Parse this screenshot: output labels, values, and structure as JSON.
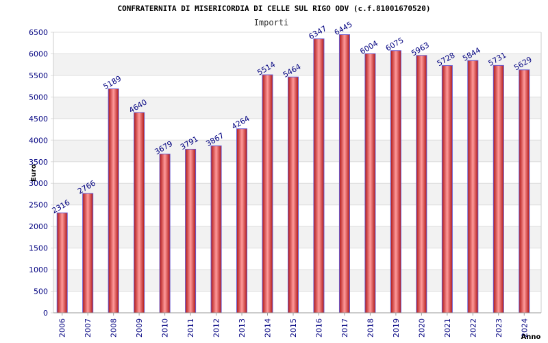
{
  "chart_data": {
    "type": "bar",
    "title": "CONFRATERNITA DI MISERICORDIA DI CELLE SUL RIGO ODV (c.f.81001670520)",
    "subtitle": "Importi",
    "xlabel": "Anno",
    "ylabel": "Euro",
    "ylim": [
      0,
      6500
    ],
    "yticks": [
      0,
      500,
      1000,
      1500,
      2000,
      2500,
      3000,
      3500,
      4000,
      4500,
      5000,
      5500,
      6000,
      6500
    ],
    "categories": [
      "2006",
      "2007",
      "2008",
      "2009",
      "2010",
      "2011",
      "2012",
      "2013",
      "2014",
      "2015",
      "2016",
      "2017",
      "2018",
      "2019",
      "2020",
      "2021",
      "2022",
      "2023",
      "2024"
    ],
    "values": [
      2316,
      2766,
      5189,
      4640,
      3679,
      3791,
      3867,
      4264,
      5514,
      5464,
      6347,
      6445,
      6004,
      6075,
      5963,
      5728,
      5844,
      5731,
      5629
    ],
    "grid": true,
    "colors": {
      "bar_edge": "#cc2222",
      "bar_center": "#ff8a8a",
      "bar_side": "#6a5acd",
      "band": "#f2f2f2",
      "grid": "#dddddd",
      "tick_text": "#000080"
    }
  }
}
